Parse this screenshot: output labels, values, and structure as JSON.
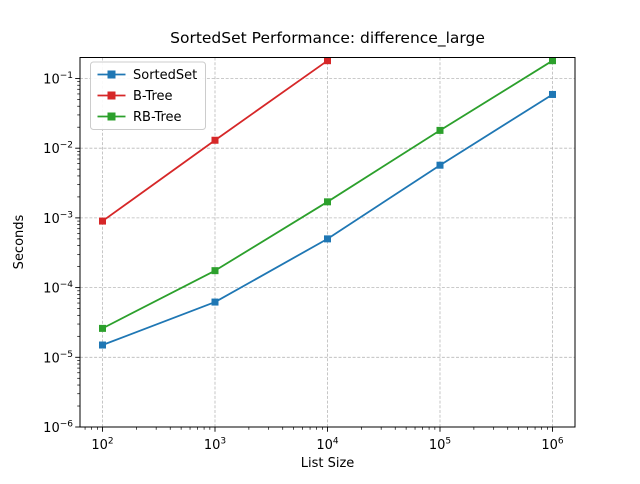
{
  "figure": {
    "background": "#ffffff",
    "spine_color": "#000000",
    "grid_color": "#b9b9b9"
  },
  "chart_data": {
    "type": "line",
    "title": "SortedSet Performance: difference_large",
    "xlabel": "List Size",
    "ylabel": "Seconds",
    "x_scale": "log",
    "y_scale": "log",
    "xlim": [
      63.1,
      1584893
    ],
    "ylim": [
      1e-06,
      0.2
    ],
    "grid": true,
    "grid_style": "dashed",
    "legend_position": "upper left",
    "x_tick_exponents": [
      2,
      3,
      4,
      5,
      6
    ],
    "y_tick_exponents": [
      -1,
      -2,
      -3,
      -4,
      -5,
      -6
    ],
    "series": [
      {
        "name": "SortedSet",
        "color": "#1f77b4",
        "marker": "square",
        "x": [
          100,
          1000,
          10000,
          100000,
          1000000
        ],
        "values": [
          1.5e-05,
          6.2e-05,
          0.0005,
          0.0057,
          0.059
        ]
      },
      {
        "name": "B-Tree",
        "color": "#d62728",
        "marker": "square",
        "x": [
          100,
          1000,
          10000
        ],
        "values": [
          0.0009,
          0.013,
          0.18
        ]
      },
      {
        "name": "RB-Tree",
        "color": "#2ca02c",
        "marker": "square",
        "x": [
          100,
          1000,
          10000,
          100000,
          1000000
        ],
        "values": [
          2.6e-05,
          0.000175,
          0.0017,
          0.018,
          0.18
        ]
      }
    ]
  }
}
